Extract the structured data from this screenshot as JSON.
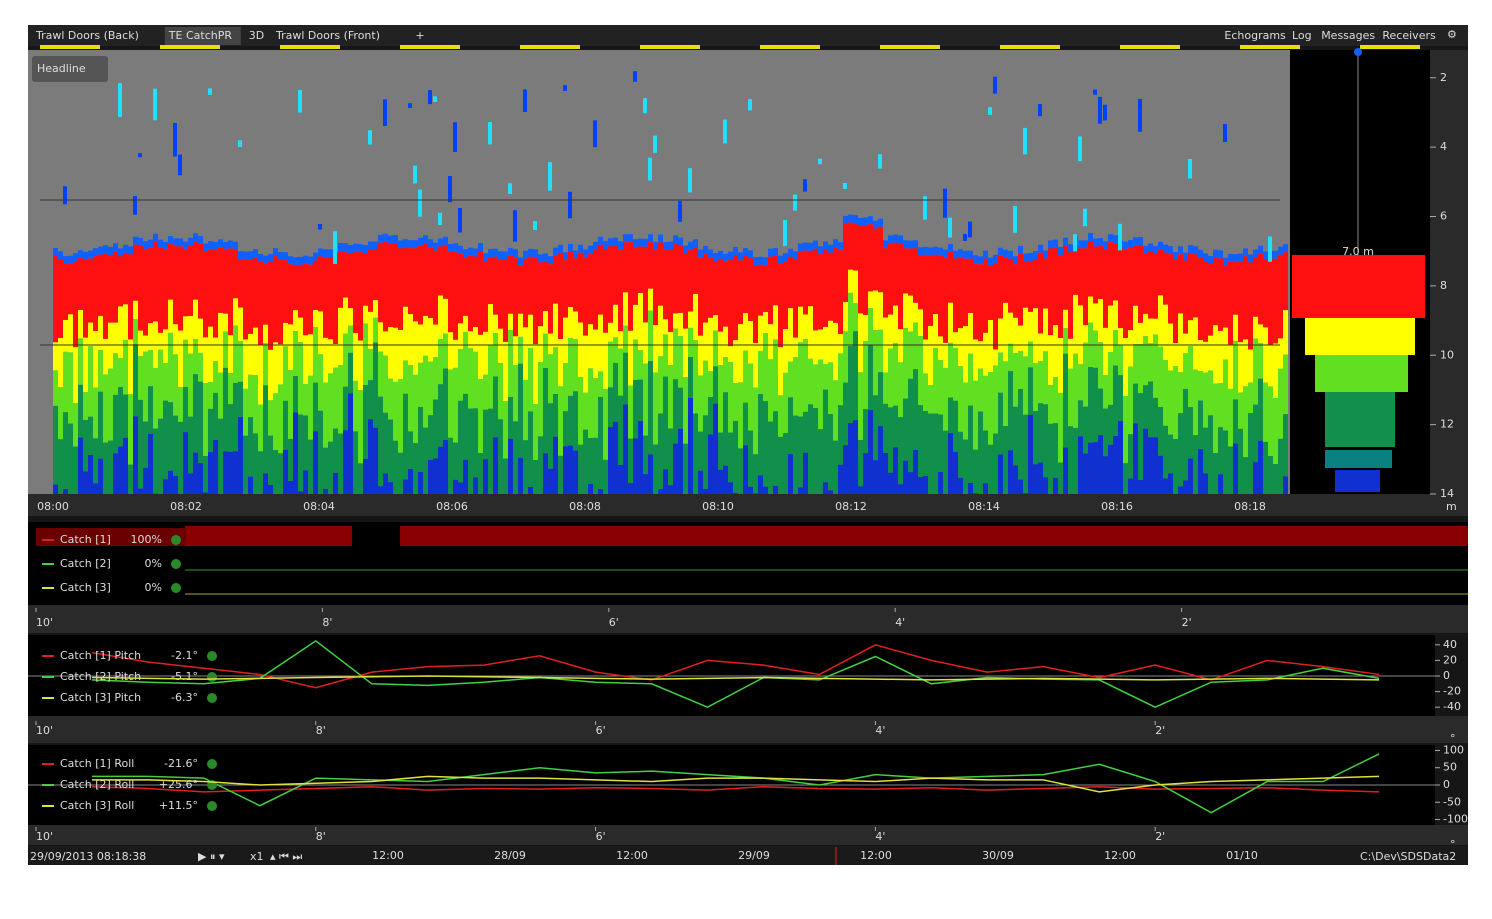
{
  "tabs": [
    "Trawl Doors (Back)",
    "TE CatchPR",
    "3D",
    "Trawl Doors (Front)",
    "+"
  ],
  "menu": [
    "Echograms",
    "Log",
    "Messages",
    "Receivers"
  ],
  "echogram": {
    "label": "Headline",
    "depth_unit": "m",
    "ylim": [
      1.2,
      14
    ],
    "yticks": [
      2,
      4,
      6,
      8,
      10,
      12,
      14
    ],
    "time_ticks": [
      "08:00",
      "08:02",
      "08:04",
      "08:06",
      "08:08",
      "08:10",
      "08:12",
      "08:14",
      "08:16",
      "08:18"
    ],
    "scale_label": "7.0 m"
  },
  "catch_panel": {
    "rows": [
      {
        "name": "Catch [1]",
        "readout": "100%",
        "color": "#d02020"
      },
      {
        "name": "Catch [2]",
        "readout": "0%",
        "color": "#40d040"
      },
      {
        "name": "Catch [3]",
        "readout": "0%",
        "color": "#e0e040"
      }
    ]
  },
  "pitch_chart": {
    "type": "line",
    "unit": "°",
    "xlim": [
      10,
      0
    ],
    "xticks": [
      {
        "value": 10,
        "label": "10'"
      },
      {
        "value": 8,
        "label": "8'"
      },
      {
        "value": 6,
        "label": "6'"
      },
      {
        "value": 4,
        "label": "4'"
      },
      {
        "value": 2,
        "label": "2'"
      }
    ],
    "ylim": [
      -50,
      50
    ],
    "yticks": [
      40,
      20,
      0,
      -20,
      -40
    ],
    "x": [
      9.6,
      9.2,
      8.8,
      8.4,
      8.0,
      7.6,
      7.2,
      6.8,
      6.4,
      6.0,
      5.6,
      5.2,
      4.8,
      4.4,
      4.0,
      3.6,
      3.2,
      2.8,
      2.4,
      2.0,
      1.6,
      1.2,
      0.8,
      0.4
    ],
    "series": [
      {
        "name": "Catch [1] Pitch",
        "readout": "-2.1°",
        "color": "#e02020",
        "values": [
          30,
          18,
          10,
          2,
          -15,
          5,
          12,
          14,
          26,
          5,
          -5,
          20,
          14,
          2,
          40,
          20,
          5,
          12,
          -2,
          14,
          -5,
          20,
          12,
          2
        ]
      },
      {
        "name": "Catch [2] Pitch",
        "readout": "-5.1°",
        "color": "#40d040",
        "values": [
          -5,
          -8,
          -10,
          -3,
          45,
          -10,
          -12,
          -8,
          -2,
          -8,
          -10,
          -40,
          -2,
          -5,
          25,
          -10,
          -2,
          -4,
          -5,
          -40,
          -8,
          -5,
          10,
          -3
        ]
      },
      {
        "name": "Catch [3] Pitch",
        "readout": "-6.3°",
        "color": "#e0e040",
        "values": [
          -2,
          -3,
          -4,
          -3,
          -2,
          -1,
          0,
          -1,
          -2,
          -3,
          -4,
          -3,
          -2,
          -3,
          -4,
          -5,
          -4,
          -3,
          -4,
          -5,
          -4,
          -3,
          -4,
          -5
        ]
      }
    ]
  },
  "roll_chart": {
    "type": "line",
    "unit": "°",
    "xlim": [
      10,
      0
    ],
    "xticks": [
      {
        "value": 10,
        "label": "10'"
      },
      {
        "value": 8,
        "label": "8'"
      },
      {
        "value": 6,
        "label": "6'"
      },
      {
        "value": 4,
        "label": "4'"
      },
      {
        "value": 2,
        "label": "2'"
      }
    ],
    "ylim": [
      -110,
      110
    ],
    "yticks": [
      100,
      50,
      0,
      -50,
      -100
    ],
    "x": [
      9.6,
      9.2,
      8.8,
      8.4,
      8.0,
      7.6,
      7.2,
      6.8,
      6.4,
      6.0,
      5.6,
      5.2,
      4.8,
      4.4,
      4.0,
      3.6,
      3.2,
      2.8,
      2.4,
      2.0,
      1.6,
      1.2,
      0.8,
      0.4
    ],
    "series": [
      {
        "name": "Catch [1] Roll",
        "readout": "-21.6°",
        "color": "#e02020",
        "values": [
          -5,
          -10,
          -20,
          -15,
          -10,
          -5,
          -15,
          -10,
          -12,
          -8,
          -10,
          -15,
          -5,
          -10,
          -12,
          -8,
          -15,
          -10,
          -5,
          -12,
          -10,
          -8,
          -15,
          -20
        ]
      },
      {
        "name": "Catch [2] Roll",
        "readout": "+25.6°",
        "color": "#40d040",
        "values": [
          25,
          25,
          20,
          -60,
          20,
          15,
          10,
          30,
          50,
          35,
          40,
          30,
          20,
          0,
          30,
          20,
          25,
          30,
          60,
          10,
          -80,
          10,
          10,
          90
        ]
      },
      {
        "name": "Catch [3] Roll",
        "readout": "+11.5°",
        "color": "#e0e040",
        "values": [
          15,
          15,
          10,
          0,
          5,
          10,
          25,
          20,
          20,
          15,
          10,
          20,
          20,
          15,
          10,
          20,
          15,
          15,
          -20,
          0,
          10,
          15,
          20,
          25
        ]
      }
    ]
  },
  "status": {
    "datetime": "29/09/2013 08:18:38",
    "speed": "x1",
    "timeline": [
      "12:00",
      "28/09",
      "12:00",
      "29/09",
      "12:00",
      "30/09",
      "12:00",
      "01/10"
    ],
    "path": "C:\\Dev\\SDSData2"
  }
}
